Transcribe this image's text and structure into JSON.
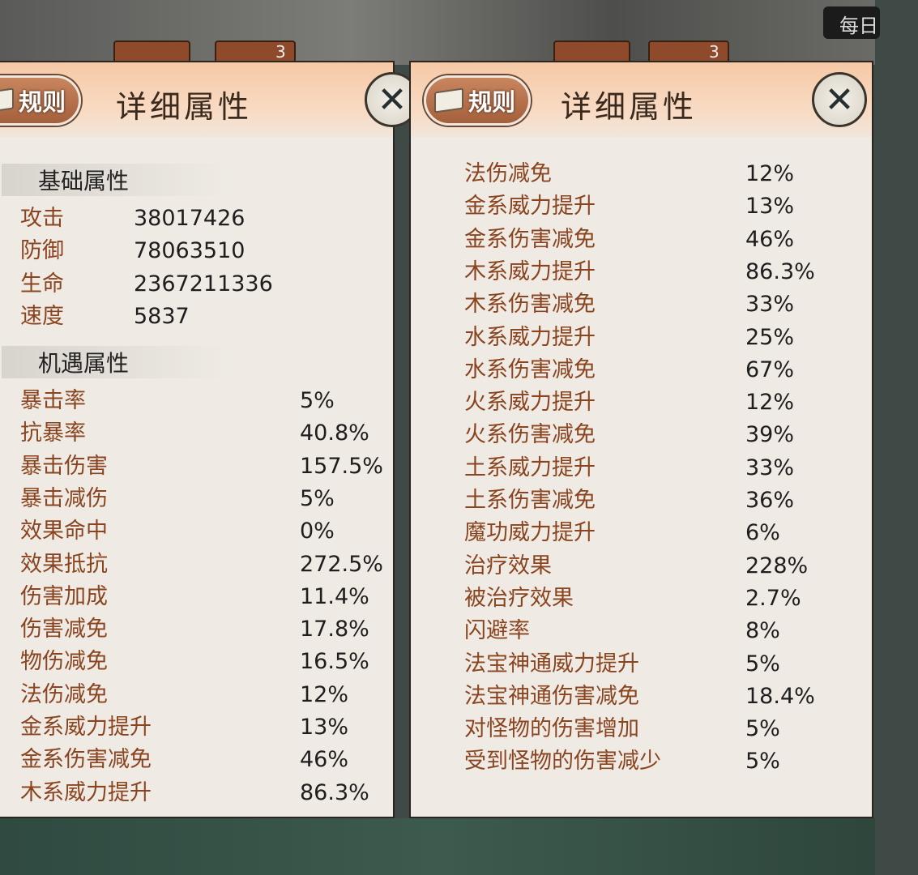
{
  "header": {
    "rules_label": "规则",
    "title": "详细属性",
    "daily_label": "每日",
    "tab_badge": "3"
  },
  "left_panel": {
    "basic_section": "基础属性",
    "basic": [
      {
        "label": "攻击",
        "value": "38017426"
      },
      {
        "label": "防御",
        "value": "78063510"
      },
      {
        "label": "生命",
        "value": "2367211336"
      },
      {
        "label": "速度",
        "value": "5837"
      }
    ],
    "chance_section": "机遇属性",
    "chance": [
      {
        "label": "暴击率",
        "value": "5%"
      },
      {
        "label": "抗暴率",
        "value": "40.8%"
      },
      {
        "label": "暴击伤害",
        "value": "157.5%"
      },
      {
        "label": "暴击减伤",
        "value": "5%"
      },
      {
        "label": "效果命中",
        "value": "0%"
      },
      {
        "label": "效果抵抗",
        "value": "272.5%"
      },
      {
        "label": "伤害加成",
        "value": "11.4%"
      },
      {
        "label": "伤害减免",
        "value": "17.8%"
      },
      {
        "label": "物伤减免",
        "value": "16.5%"
      },
      {
        "label": "法伤减免",
        "value": "12%"
      },
      {
        "label": "金系威力提升",
        "value": "13%"
      },
      {
        "label": "金系伤害减免",
        "value": "46%"
      },
      {
        "label": "木系威力提升",
        "value": "86.3%"
      }
    ]
  },
  "right_panel": {
    "chance": [
      {
        "label": "法伤减免",
        "value": "12%"
      },
      {
        "label": "金系威力提升",
        "value": "13%"
      },
      {
        "label": "金系伤害减免",
        "value": "46%"
      },
      {
        "label": "木系威力提升",
        "value": "86.3%"
      },
      {
        "label": "木系伤害减免",
        "value": "33%"
      },
      {
        "label": "水系威力提升",
        "value": "25%"
      },
      {
        "label": "水系伤害减免",
        "value": "67%"
      },
      {
        "label": "火系威力提升",
        "value": "12%"
      },
      {
        "label": "火系伤害减免",
        "value": "39%"
      },
      {
        "label": "土系威力提升",
        "value": "33%"
      },
      {
        "label": "土系伤害减免",
        "value": "36%"
      },
      {
        "label": "魔功威力提升",
        "value": "6%"
      },
      {
        "label": "治疗效果",
        "value": "228%"
      },
      {
        "label": "被治疗效果",
        "value": "2.7%"
      },
      {
        "label": "闪避率",
        "value": "8%"
      },
      {
        "label": "法宝神通威力提升",
        "value": "5%"
      },
      {
        "label": "法宝神通伤害减免",
        "value": "18.4%"
      },
      {
        "label": "对怪物的伤害增加",
        "value": "5%"
      },
      {
        "label": "受到怪物的伤害减少",
        "value": "5%"
      }
    ]
  },
  "icons": {
    "rules": "book-icon",
    "close": "close-icon"
  },
  "colors": {
    "label": "#8a4520",
    "value": "#1e1e1e",
    "header": "#f6c9a6"
  }
}
